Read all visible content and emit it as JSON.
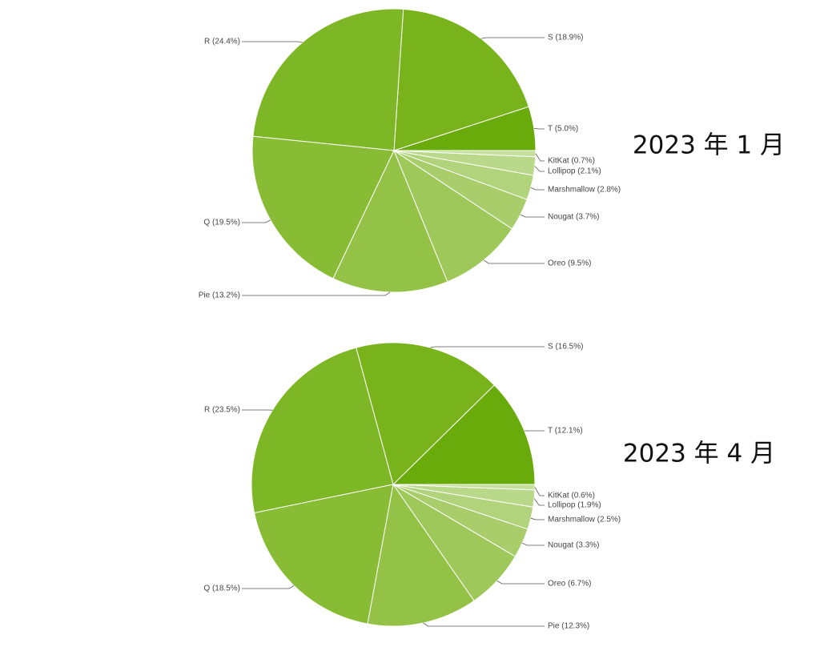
{
  "chart_data": [
    {
      "type": "pie",
      "title": "2023 年 1 月",
      "values": [
        5.0,
        18.9,
        24.4,
        19.5,
        13.2,
        9.5,
        3.7,
        2.8,
        2.1,
        0.7
      ],
      "value_labels": [
        "T (5.0%)",
        "S (18.9%)",
        "R (24.4%)",
        "Q (19.5%)",
        "Pie (13.2%)",
        "Oreo (9.5%)",
        "Nougat (3.7%)",
        "Marshmallow (2.8%)",
        "Lollipop (2.1%)",
        "KitKat (0.7%)"
      ],
      "colors": [
        "#6aab0c",
        "#78b31b",
        "#7eb726",
        "#88bc35",
        "#93c246",
        "#9ec85a",
        "#a8cd6a",
        "#b1d37b",
        "#bad88a",
        "#c4de9b"
      ]
    },
    {
      "type": "pie",
      "title": "2023 年 4 月",
      "values": [
        12.1,
        16.5,
        23.5,
        18.5,
        12.3,
        6.7,
        3.3,
        2.5,
        1.9,
        0.6
      ],
      "value_labels": [
        "T (12.1%)",
        "S (16.5%)",
        "R (23.5%)",
        "Q (18.5%)",
        "Pie (12.3%)",
        "Oreo (6.7%)",
        "Nougat (3.3%)",
        "Marshmallow (2.5%)",
        "Lollipop (1.9%)",
        "KitKat (0.6%)"
      ],
      "colors": [
        "#6aab0c",
        "#78b31b",
        "#7eb726",
        "#88bc35",
        "#93c246",
        "#9ec85a",
        "#a8cd6a",
        "#b1d37b",
        "#bad88a",
        "#c4de9b"
      ]
    }
  ]
}
